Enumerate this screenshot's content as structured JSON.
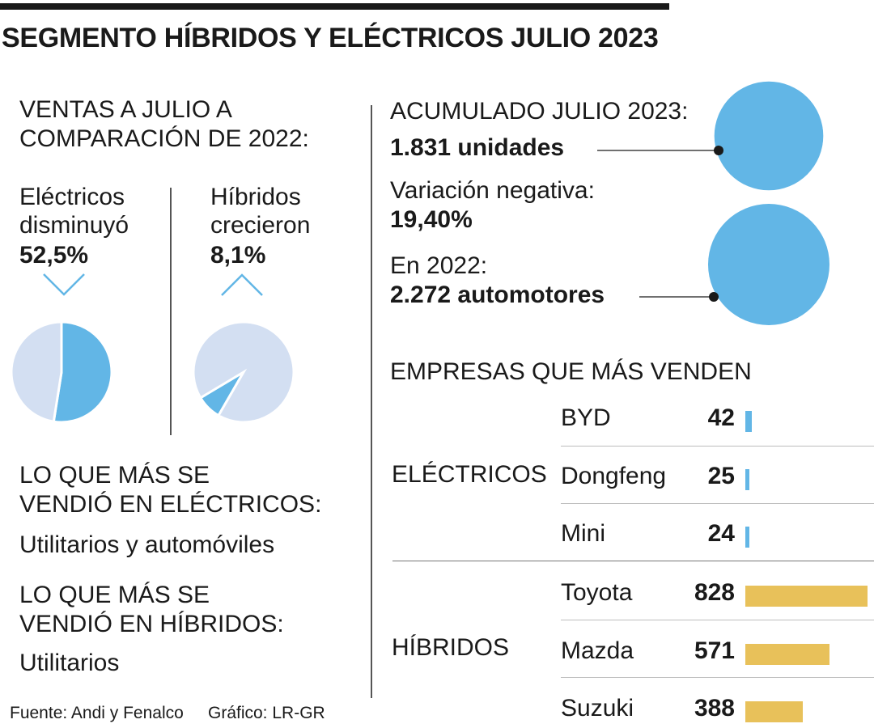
{
  "title": "SEGMENTO HÍBRIDOS Y ELÉCTRICOS JULIO 2023",
  "colors": {
    "blue": "#62b6e6",
    "light_blue": "#d3dff2",
    "gold": "#e8c15a",
    "dark": "#1a1a1a",
    "gray_line": "#555555"
  },
  "left": {
    "ventas_heading": [
      "VENTAS A JULIO A",
      "COMPARACIÓN DE 2022:"
    ],
    "electricos": {
      "label1": "Eléctricos",
      "label2": "disminuyó",
      "pct": "52,5%",
      "direction": "down"
    },
    "hibridos": {
      "label1": "Híbridos",
      "label2": "crecieron",
      "pct": "8,1%",
      "direction": "up"
    },
    "mas_vendido_elec_heading": [
      "LO QUE MÁS SE",
      "VENDIÓ EN ELÉCTRICOS:"
    ],
    "mas_vendido_elec_value": "Utilitarios y automóviles",
    "mas_vendido_hib_heading": [
      "LO QUE MÁS SE",
      "VENDIÓ EN HÍBRIDOS:"
    ],
    "mas_vendido_hib_value": "Utilitarios",
    "fuente": "Fuente: Andi y Fenalco",
    "grafico": "Gráfico: LR-GR"
  },
  "right": {
    "acumulado_label": "ACUMULADO JULIO 2023:",
    "acumulado_value": "1.831 unidades",
    "variacion_label": "Variación negativa:",
    "variacion_value": "19,40%",
    "prev_label": "En 2022:",
    "prev_value": "2.272 automotores",
    "empresas_heading": "EMPRESAS QUE MÁS VENDEN",
    "cat_electricos": "ELÉCTRICOS",
    "cat_hibridos": "HÍBRIDOS"
  },
  "chart_data": [
    {
      "type": "pie",
      "title": "Eléctricos disminuyó 52,5%",
      "slices": [
        {
          "label": "Eléctricos disminuyó",
          "value": 52.5,
          "color": "#62b6e6"
        },
        {
          "label": "",
          "value": 47.5,
          "color": "#d3dff2"
        }
      ]
    },
    {
      "type": "pie",
      "title": "Híbridos crecieron 8,1%",
      "slices": [
        {
          "label": "Híbridos crecieron",
          "value": 8.1,
          "color": "#62b6e6"
        },
        {
          "label": "",
          "value": 91.9,
          "color": "#d3dff2"
        }
      ]
    },
    {
      "type": "scatter",
      "title": "ACUMULADO JULIO 2023 vs 2022",
      "points": [
        {
          "label": "1.831 unidades",
          "value": 1831
        },
        {
          "label": "2.272 automotores",
          "value": 2272
        }
      ]
    },
    {
      "type": "bar",
      "title": "EMPRESAS QUE MÁS VENDEN",
      "max": 828,
      "series": [
        {
          "name": "ELÉCTRICOS",
          "color": "#62b6e6",
          "categories": [
            "BYD",
            "Dongfeng",
            "Mini"
          ],
          "values": [
            42,
            25,
            24
          ]
        },
        {
          "name": "HÍBRIDOS",
          "color": "#e8c15a",
          "categories": [
            "Toyota",
            "Mazda",
            "Suzuki"
          ],
          "values": [
            828,
            571,
            388
          ]
        }
      ]
    }
  ]
}
